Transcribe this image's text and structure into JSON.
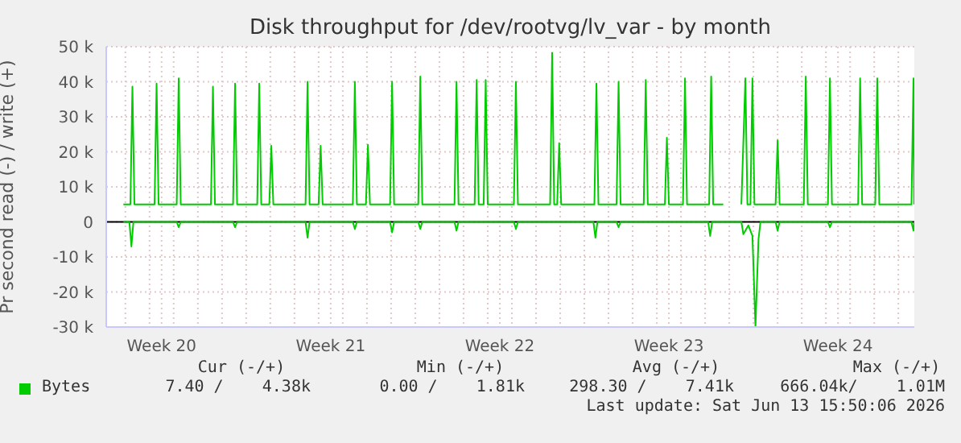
{
  "chart_data": {
    "type": "line",
    "title": "Disk throughput for /dev/rootvg/lv_var - by month",
    "ylabel": "Pr second read (-) / write (+)",
    "xlim": [
      "2026-05-11T05:00",
      "2026-06-13T15:50"
    ],
    "xticks": [
      {
        "value": "2026-05-12",
        "label": null
      },
      {
        "value": "2026-05-13",
        "label": null
      },
      {
        "value": "2026-05-13T12:00",
        "label": "Week 20"
      },
      {
        "value": "2026-05-14",
        "label": null
      },
      {
        "value": "2026-05-15",
        "label": null
      },
      {
        "value": "2026-05-16",
        "label": null
      },
      {
        "value": "2026-05-17",
        "label": null
      },
      {
        "value": "2026-05-18",
        "label": null
      },
      {
        "value": "2026-05-19",
        "label": null
      },
      {
        "value": "2026-05-20",
        "label": null
      },
      {
        "value": "2026-05-20T12:00",
        "label": "Week 21"
      },
      {
        "value": "2026-05-21",
        "label": null
      },
      {
        "value": "2026-05-22",
        "label": null
      },
      {
        "value": "2026-05-23",
        "label": null
      },
      {
        "value": "2026-05-24",
        "label": null
      },
      {
        "value": "2026-05-25",
        "label": null
      },
      {
        "value": "2026-05-26",
        "label": null
      },
      {
        "value": "2026-05-27",
        "label": null
      },
      {
        "value": "2026-05-27T12:00",
        "label": "Week 22"
      },
      {
        "value": "2026-05-28",
        "label": null
      },
      {
        "value": "2026-05-29",
        "label": null
      },
      {
        "value": "2026-05-30",
        "label": null
      },
      {
        "value": "2026-05-31",
        "label": null
      },
      {
        "value": "2026-06-01",
        "label": null
      },
      {
        "value": "2026-06-02",
        "label": null
      },
      {
        "value": "2026-06-03",
        "label": null
      },
      {
        "value": "2026-06-03T12:00",
        "label": "Week 23"
      },
      {
        "value": "2026-06-04",
        "label": null
      },
      {
        "value": "2026-06-05",
        "label": null
      },
      {
        "value": "2026-06-06",
        "label": null
      },
      {
        "value": "2026-06-07",
        "label": null
      },
      {
        "value": "2026-06-08",
        "label": null
      },
      {
        "value": "2026-06-09",
        "label": null
      },
      {
        "value": "2026-06-10",
        "label": null
      },
      {
        "value": "2026-06-10T12:00",
        "label": "Week 24"
      },
      {
        "value": "2026-06-11",
        "label": null
      },
      {
        "value": "2026-06-12",
        "label": null
      },
      {
        "value": "2026-06-13",
        "label": null
      }
    ],
    "ylim": [
      -30000,
      50000
    ],
    "yticks": [
      {
        "value": -30000,
        "label": "-30 k"
      },
      {
        "value": -20000,
        "label": "-20 k"
      },
      {
        "value": -10000,
        "label": "-10 k"
      },
      0,
      {
        "value": 10000,
        "label": "10 k"
      },
      {
        "value": 20000,
        "label": "20 k"
      },
      {
        "value": 30000,
        "label": "30 k"
      },
      {
        "value": 40000,
        "label": "40 k"
      },
      {
        "value": 50000,
        "label": "50 k"
      }
    ],
    "grid": true,
    "legend": "bottom left",
    "ref_lines": [
      {
        "axis": "y",
        "value": 0,
        "color": "#000000"
      }
    ],
    "series": [
      {
        "name": "Bytes",
        "color": "#00cc00",
        "x": [
          "2026-05-11T22:00",
          "2026-05-12T05:00",
          "2026-05-12T07:00",
          "2026-05-12T09:00",
          "2026-05-13T05:00",
          "2026-05-13T07:00",
          "2026-05-13T09:00",
          "2026-05-14T03:00",
          "2026-05-14T05:00",
          "2026-05-14T07:00",
          "2026-05-15T13:00",
          "2026-05-15T15:00",
          "2026-05-15T17:00",
          "2026-05-16T11:00",
          "2026-05-16T13:00",
          "2026-05-16T15:00",
          "2026-05-17T11:00",
          "2026-05-17T13:00",
          "2026-05-17T15:00",
          "2026-05-17T23:00",
          "2026-05-18T01:00",
          "2026-05-18T03:00",
          "2026-05-19T11:00",
          "2026-05-19T13:00",
          "2026-05-19T15:00",
          "2026-05-20T00:00",
          "2026-05-20T02:00",
          "2026-05-20T04:00",
          "2026-05-21T10:00",
          "2026-05-21T12:00",
          "2026-05-21T14:00",
          "2026-05-21T23:00",
          "2026-05-22T01:00",
          "2026-05-22T03:00",
          "2026-05-22T23:00",
          "2026-05-23T01:00",
          "2026-05-23T03:00",
          "2026-05-24T03:00",
          "2026-05-24T05:00",
          "2026-05-24T07:00",
          "2026-05-25T15:00",
          "2026-05-25T17:00",
          "2026-05-25T19:00",
          "2026-05-26T11:00",
          "2026-05-26T13:00",
          "2026-05-26T15:00",
          "2026-05-26T20:00",
          "2026-05-26T22:00",
          "2026-05-27T00:00",
          "2026-05-28T02:00",
          "2026-05-28T04:00",
          "2026-05-28T06:00",
          "2026-05-29T14:00",
          "2026-05-29T16:00",
          "2026-05-29T18:00",
          "2026-05-29T21:00",
          "2026-05-29T23:00",
          "2026-05-30T01:00",
          "2026-05-31T10:00",
          "2026-05-31T12:00",
          "2026-05-31T14:00",
          "2026-06-01T08:00",
          "2026-06-01T10:00",
          "2026-06-01T12:00",
          "2026-06-02T11:00",
          "2026-06-02T13:00",
          "2026-06-02T15:00",
          "2026-06-03T08:00",
          "2026-06-03T10:00",
          "2026-06-03T12:00",
          "2026-06-04T02:00",
          "2026-06-04T04:00",
          "2026-06-04T06:00",
          "2026-06-05T04:00",
          "2026-06-05T06:00",
          "2026-06-05T08:00",
          "2026-06-05T18:00",
          "2026-06-06T02:00",
          "2026-06-06T12:00",
          "2026-06-06T16:00",
          "2026-06-06T18:00",
          "2026-06-06T21:00",
          "2026-06-06T23:00",
          "2026-06-07T01:00",
          "2026-06-07T22:00",
          "2026-06-08T00:00",
          "2026-06-08T02:00",
          "2026-06-09T02:00",
          "2026-06-09T04:00",
          "2026-06-09T06:00",
          "2026-06-10T02:00",
          "2026-06-10T04:00",
          "2026-06-10T06:00",
          "2026-06-11T08:00",
          "2026-06-11T10:00",
          "2026-06-11T12:00",
          "2026-06-12T01:00",
          "2026-06-12T03:00",
          "2026-06-12T05:00",
          "2026-06-13T13:00",
          "2026-06-13T15:00",
          "2026-06-13T15:40"
        ],
        "values": [
          5000,
          5000,
          38600,
          5000,
          5000,
          39500,
          5000,
          5000,
          41000,
          5000,
          5000,
          38600,
          5000,
          5000,
          39500,
          5000,
          5000,
          39500,
          5000,
          5000,
          21700,
          5000,
          5000,
          40000,
          5000,
          5000,
          21700,
          5000,
          5000,
          40000,
          5000,
          5000,
          22000,
          5000,
          5000,
          40000,
          5000,
          5000,
          41500,
          5000,
          5000,
          40000,
          5000,
          5000,
          40500,
          5000,
          5000,
          40500,
          5000,
          5000,
          40000,
          5000,
          5000,
          48300,
          5000,
          5000,
          22500,
          5000,
          5000,
          39500,
          5000,
          5000,
          40000,
          5000,
          5000,
          40500,
          5000,
          5000,
          24000,
          5000,
          5000,
          41000,
          5000,
          5000,
          41500,
          5000,
          5000,
          null,
          5000,
          41000,
          5000,
          5000,
          41000,
          5000,
          5000,
          23300,
          5000,
          5000,
          41500,
          5000,
          5000,
          41000,
          5000,
          5000,
          41000,
          5000,
          5000,
          41000,
          5000,
          5000,
          41000,
          5000
        ]
      },
      {
        "color": "#00cc00",
        "x": [
          "2026-05-11T22:00",
          "2026-05-12T04:00",
          "2026-05-12T06:00",
          "2026-05-12T08:00",
          "2026-05-14T03:00",
          "2026-05-14T05:00",
          "2026-05-14T07:00",
          "2026-05-16T11:00",
          "2026-05-16T13:00",
          "2026-05-16T15:00",
          "2026-05-19T11:00",
          "2026-05-19T13:00",
          "2026-05-19T15:00",
          "2026-05-21T10:00",
          "2026-05-21T12:00",
          "2026-05-21T14:00",
          "2026-05-22T23:00",
          "2026-05-23T01:00",
          "2026-05-23T03:00",
          "2026-05-24T03:00",
          "2026-05-24T05:00",
          "2026-05-24T07:00",
          "2026-05-25T15:00",
          "2026-05-25T17:00",
          "2026-05-25T19:00",
          "2026-05-28T02:00",
          "2026-05-28T04:00",
          "2026-05-28T06:00",
          "2026-05-31T09:00",
          "2026-05-31T11:00",
          "2026-05-31T13:00",
          "2026-06-01T08:00",
          "2026-06-01T10:00",
          "2026-06-01T12:00",
          "2026-06-05T03:00",
          "2026-06-05T05:00",
          "2026-06-05T07:00",
          "2026-06-06T12:00",
          "2026-06-06T14:00",
          "2026-06-06T19:00",
          "2026-06-06T23:00",
          "2026-06-07T02:00",
          "2026-06-07T05:00",
          "2026-06-07T07:00",
          "2026-06-07T22:00",
          "2026-06-08T00:00",
          "2026-06-08T02:00",
          "2026-06-10T02:00",
          "2026-06-10T04:00",
          "2026-06-10T06:00",
          "2026-06-13T13:00",
          "2026-06-13T15:00",
          "2026-06-13T15:40"
        ],
        "values": [
          0,
          0,
          -7000,
          0,
          0,
          -1500,
          0,
          0,
          -1500,
          0,
          0,
          -4500,
          0,
          0,
          -2000,
          0,
          0,
          -3000,
          0,
          0,
          -2000,
          0,
          0,
          -2500,
          0,
          0,
          -2000,
          0,
          0,
          -4500,
          0,
          0,
          -1500,
          0,
          0,
          -4000,
          0,
          0,
          -3500,
          -1000,
          -4000,
          -30000,
          -5000,
          0,
          0,
          -2500,
          0,
          0,
          -1500,
          0,
          0,
          -2500,
          0
        ]
      }
    ],
    "annotations": [
      "Cur (-/+)",
      "Min (-/+)",
      "Avg (-/+)",
      "Max (-/+)",
      "7.40 /    4.38k",
      "0.00 /    1.81k",
      "298.30 /    7.41k",
      "666.04k/    1.01M",
      "Last update: Sat Jun 13 15:50:06 2026"
    ]
  }
}
